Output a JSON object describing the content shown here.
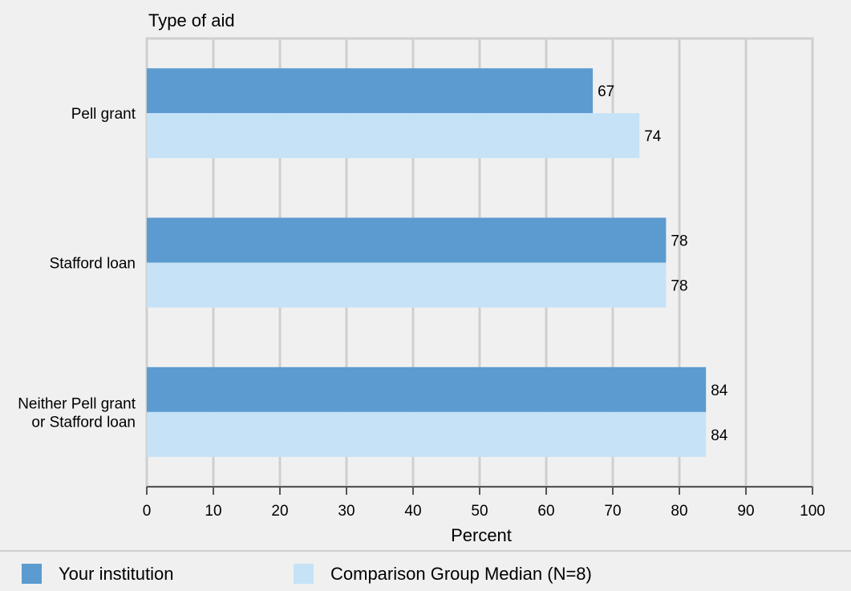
{
  "chart_data": {
    "type": "bar",
    "orientation": "horizontal",
    "y_axis_title": "Type of aid",
    "xlabel": "Percent",
    "categories": [
      [
        "Pell grant"
      ],
      [
        "Stafford loan"
      ],
      [
        "Neither Pell grant",
        "or Stafford loan"
      ]
    ],
    "series": [
      {
        "name": "Your institution",
        "color": "#5b9bd0",
        "values": [
          67,
          78,
          84
        ]
      },
      {
        "name": "Comparison Group Median (N=8)",
        "color": "#c6e2f6",
        "values": [
          74,
          78,
          84
        ]
      }
    ],
    "xlim": [
      0,
      100
    ],
    "xticks": [
      0,
      10,
      20,
      30,
      40,
      50,
      60,
      70,
      80,
      90,
      100
    ],
    "grid": true,
    "legend_position": "bottom"
  }
}
